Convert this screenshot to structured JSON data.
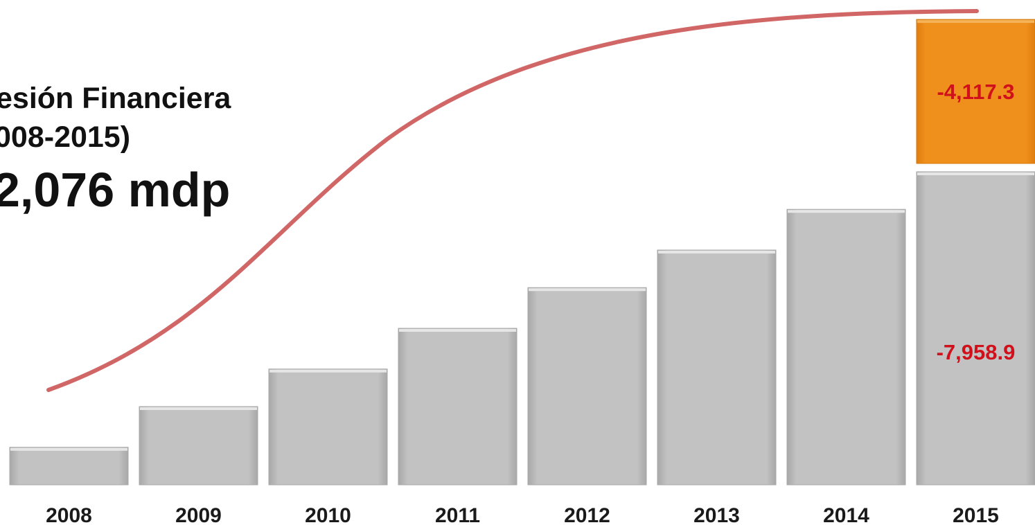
{
  "title_lines": [
    "esión Financiera",
    "008-2015)",
    "2,076 mdp"
  ],
  "chart_data": {
    "type": "bar",
    "categories": [
      "2008",
      "2009",
      "2010",
      "2011",
      "2012",
      "2013",
      "2014",
      "2015"
    ],
    "values": [
      1.2,
      2.5,
      3.7,
      5.0,
      6.3,
      7.5,
      8.8,
      10.0
    ],
    "stack_2015": {
      "lower_label": "-7,958.9",
      "upper_label": "-4,117.3",
      "upper_value": 4.6
    },
    "ylim": [
      0,
      15
    ],
    "trend_line": true,
    "grid": false
  },
  "colors": {
    "bar": "#bdbdbd",
    "stack": "#f08c1a",
    "curve": "#d16666",
    "value_text": "#d0101b"
  }
}
